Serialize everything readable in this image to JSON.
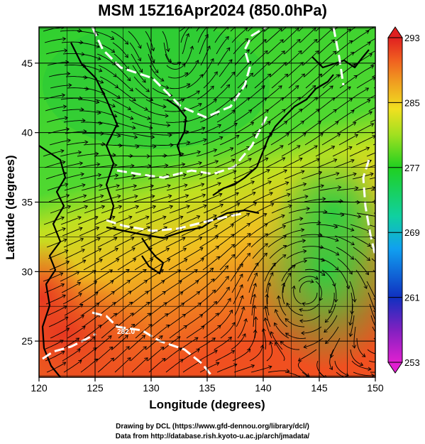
{
  "title": "MSM 15Z16Apr2024 (850.0hPa)",
  "map": {
    "x_axis": {
      "label": "Longitude (degrees)",
      "range": [
        120,
        150
      ],
      "ticks": [
        120,
        125,
        130,
        135,
        140,
        145,
        150
      ],
      "tick_labels": [
        "120",
        "125",
        "130",
        "135",
        "140",
        "145",
        "150"
      ]
    },
    "y_axis": {
      "label": "Latitude  (degrees)",
      "range": [
        22.4,
        47.6
      ],
      "ticks": [
        25,
        30,
        35,
        40,
        45
      ],
      "tick_labels": [
        "25",
        "30",
        "35",
        "40",
        "45"
      ]
    },
    "field": "temperature shading with wind streamlines",
    "grid": true,
    "contour_label": "282.0"
  },
  "colorbar": {
    "ticks": [
      253,
      261,
      269,
      277,
      285,
      293
    ],
    "tick_labels": [
      "253",
      "261",
      "269",
      "277",
      "285",
      "293"
    ],
    "colors": [
      "#e020d0",
      "#8020c0",
      "#1030c0",
      "#10a0f0",
      "#10d0a0",
      "#20d020",
      "#a0e020",
      "#f0e020",
      "#f0a020",
      "#f06020",
      "#e02020"
    ]
  },
  "credits": {
    "line1": "Drawing by DCL (https://www.gfd-dennou.org/library/dcl/)",
    "line2": "Data from http://database.rish.kyoto-u.ac.jp/arch/jmadata/"
  }
}
